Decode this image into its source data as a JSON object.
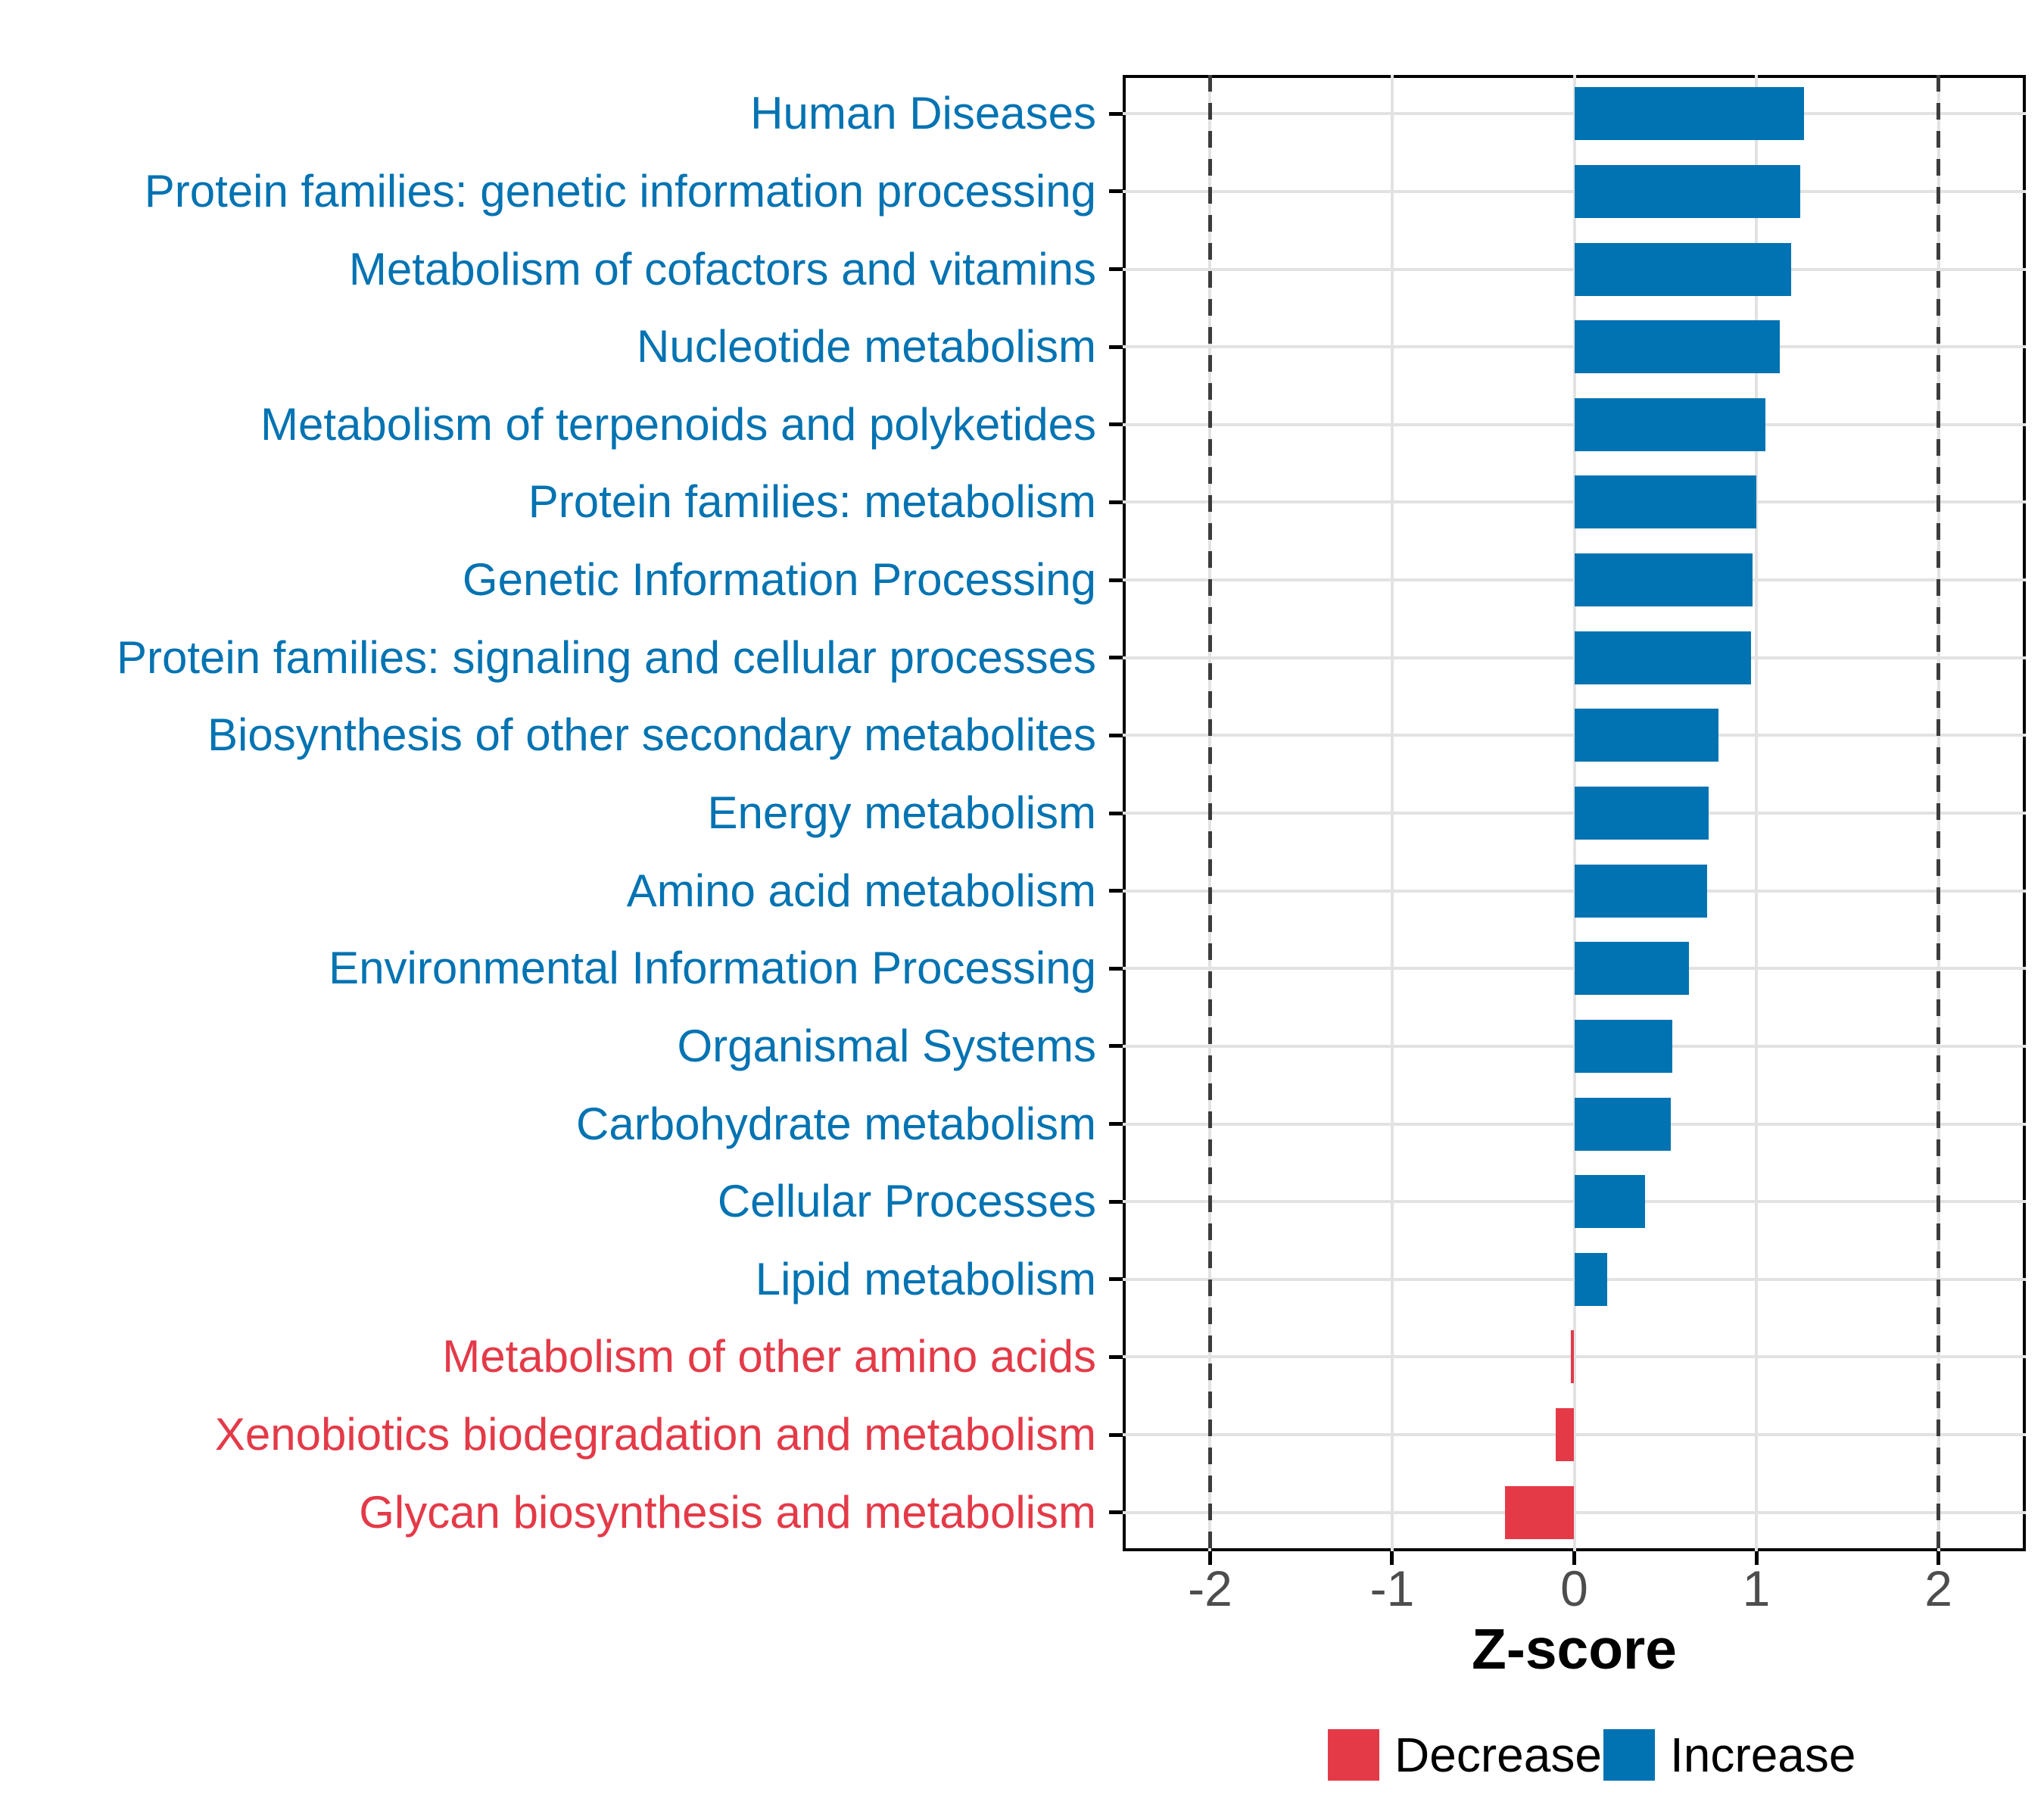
{
  "chart_data": {
    "type": "bar",
    "orientation": "horizontal",
    "title": "",
    "xlabel": "Z-score",
    "ylabel": "",
    "xlim": [
      -2.48,
      2.48
    ],
    "x_ticks": [
      -2,
      -1,
      0,
      1,
      2
    ],
    "x_tick_labels": [
      "-2",
      "-1",
      "0",
      "1",
      "2"
    ],
    "grid": true,
    "reference_lines": [
      -2,
      2
    ],
    "categories": [
      {
        "label": "Human Diseases",
        "value": 1.26,
        "direction": "increase"
      },
      {
        "label": "Protein families: genetic information processing",
        "value": 1.24,
        "direction": "increase"
      },
      {
        "label": "Metabolism of cofactors and vitamins",
        "value": 1.19,
        "direction": "increase"
      },
      {
        "label": "Nucleotide metabolism",
        "value": 1.13,
        "direction": "increase"
      },
      {
        "label": "Metabolism of terpenoids and polyketides",
        "value": 1.05,
        "direction": "increase"
      },
      {
        "label": "Protein families: metabolism",
        "value": 1.0,
        "direction": "increase"
      },
      {
        "label": "Genetic Information Processing",
        "value": 0.98,
        "direction": "increase"
      },
      {
        "label": "Protein families: signaling and cellular processes",
        "value": 0.97,
        "direction": "increase"
      },
      {
        "label": "Biosynthesis of other secondary metabolites",
        "value": 0.79,
        "direction": "increase"
      },
      {
        "label": "Energy metabolism",
        "value": 0.74,
        "direction": "increase"
      },
      {
        "label": "Amino acid metabolism",
        "value": 0.73,
        "direction": "increase"
      },
      {
        "label": "Environmental Information Processing",
        "value": 0.63,
        "direction": "increase"
      },
      {
        "label": "Organismal Systems",
        "value": 0.54,
        "direction": "increase"
      },
      {
        "label": "Carbohydrate metabolism",
        "value": 0.53,
        "direction": "increase"
      },
      {
        "label": "Cellular Processes",
        "value": 0.39,
        "direction": "increase"
      },
      {
        "label": "Lipid metabolism",
        "value": 0.18,
        "direction": "increase"
      },
      {
        "label": "Metabolism of other amino acids",
        "value": -0.02,
        "direction": "decrease"
      },
      {
        "label": "Xenobiotics biodegradation and metabolism",
        "value": -0.1,
        "direction": "decrease"
      },
      {
        "label": "Glycan biosynthesis and metabolism",
        "value": -0.38,
        "direction": "decrease"
      }
    ],
    "legend": {
      "position": "bottom",
      "items": [
        {
          "label": "Decrease",
          "color": "#E43A48"
        },
        {
          "label": "Increase",
          "color": "#0273B2"
        }
      ]
    },
    "colors": {
      "increase": "#0273B2",
      "decrease": "#E43A48",
      "gridline": "#E2E2E2",
      "reference_dash": "#3C3C3C",
      "axis_text": "#4D4D4D",
      "panel_border": "#000000"
    }
  }
}
